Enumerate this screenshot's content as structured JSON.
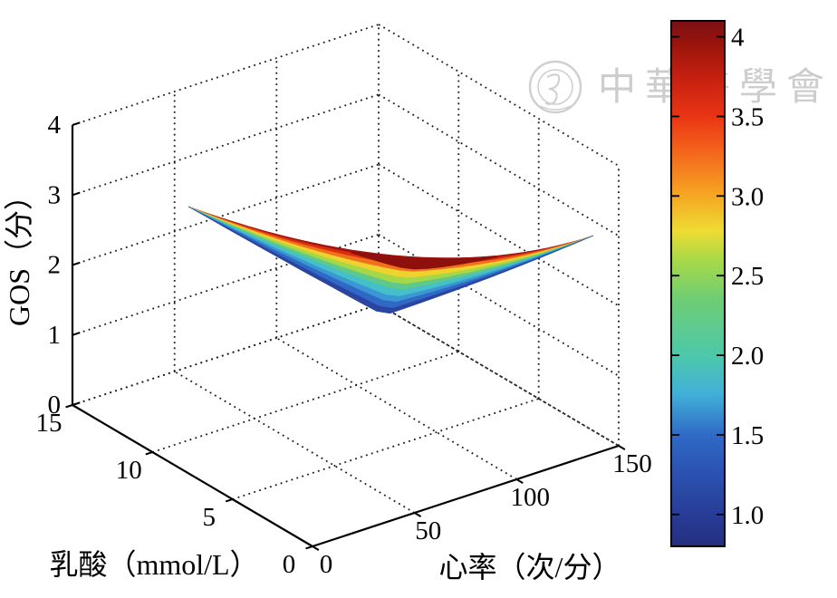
{
  "watermark": {
    "text": "中華醫學會"
  },
  "chart_data": {
    "type": "surface3d",
    "title": "",
    "description": "V-shaped valley surface: GOS is highest (about 2.8-2.9) at heart-rate extremes (0 and 150) and dips to about 1.0 near heart rate 70-80; variation along the lactate axis is small.",
    "x_axis": {
      "label": "心率（次/分）",
      "tick_values": [
        0,
        50,
        100,
        150
      ],
      "tick_labels": [
        "0",
        "50",
        "100",
        "150"
      ],
      "range": [
        0,
        150
      ]
    },
    "y_axis": {
      "label": "乳酸（mmol/L）",
      "tick_values": [
        0,
        5,
        10,
        15
      ],
      "tick_labels": [
        "0",
        "5",
        "10",
        "15"
      ],
      "range": [
        0,
        15
      ]
    },
    "z_axis": {
      "label": "GOS（分）",
      "tick_values": [
        0,
        1,
        2,
        3,
        4
      ],
      "tick_labels": [
        "0",
        "1",
        "2",
        "3",
        "4"
      ],
      "range": [
        0,
        4
      ]
    },
    "grid": {
      "style": "dotted",
      "color": "#1a1a1a"
    },
    "colorbar": {
      "colormap": "jet",
      "range": [
        0.8,
        4.1
      ],
      "tick_values": [
        4,
        3.5,
        3,
        2.5,
        2,
        1.5,
        1
      ],
      "tick_labels": [
        "4",
        "3.5",
        "3.0",
        "2.5",
        "2.0",
        "1.5",
        "1.0"
      ],
      "gradient_stops": [
        [
          0.0,
          "#7a1015"
        ],
        [
          0.04,
          "#97130c"
        ],
        [
          0.11,
          "#c62110"
        ],
        [
          0.181,
          "#e93414"
        ],
        [
          0.25,
          "#f4661c"
        ],
        [
          0.331,
          "#f6a522"
        ],
        [
          0.4,
          "#eedc33"
        ],
        [
          0.455,
          "#a8d948"
        ],
        [
          0.53,
          "#6ecd74"
        ],
        [
          0.638,
          "#4dc8ab"
        ],
        [
          0.71,
          "#41b0d8"
        ],
        [
          0.788,
          "#2f6ac6"
        ],
        [
          0.86,
          "#2b52b2"
        ],
        [
          0.94,
          "#283c96"
        ],
        [
          1.0,
          "#242e7e"
        ]
      ]
    },
    "surface": {
      "estimated_grid": {
        "heart_rate": [
          0,
          25,
          50,
          75,
          100,
          125,
          150
        ],
        "lactate": [
          0,
          5,
          10,
          15
        ],
        "gos": [
          [
            2.9,
            2.1,
            1.55,
            1.3,
            1.6,
            2.05,
            2.6
          ],
          [
            2.85,
            2.0,
            1.35,
            1.1,
            1.45,
            1.95,
            2.55
          ],
          [
            2.85,
            1.95,
            1.25,
            1.0,
            1.35,
            1.9,
            2.5
          ],
          [
            2.9,
            2.05,
            1.35,
            1.1,
            1.45,
            2.0,
            2.6
          ]
        ]
      },
      "bands": [
        [
          "#9e140d",
          0.07
        ],
        [
          "#d92d10",
          0.16
        ],
        [
          "#f0701b",
          0.26
        ],
        [
          "#eed22e",
          0.37
        ],
        [
          "#a6d747",
          0.48
        ],
        [
          "#5fc98c",
          0.58
        ],
        [
          "#46c0c8",
          0.7
        ],
        [
          "#3a97d3",
          0.8
        ],
        [
          "#2f68c5",
          0.91
        ],
        [
          "#2a45a0",
          1.0
        ]
      ],
      "fold_color": "#8e100c"
    }
  }
}
